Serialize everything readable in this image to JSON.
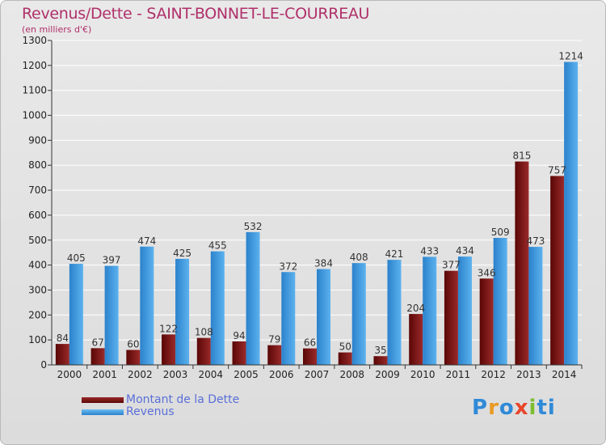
{
  "chart_data": {
    "type": "bar",
    "title": "Revenus/Dette - SAINT-BONNET-LE-COURREAU",
    "subtitle": "(en milliers d'€)",
    "categories": [
      "2000",
      "2001",
      "2002",
      "2003",
      "2004",
      "2005",
      "2006",
      "2007",
      "2008",
      "2009",
      "2010",
      "2011",
      "2012",
      "2013",
      "2014"
    ],
    "series": [
      {
        "name": "Montant de la Dette",
        "color": "#7a1212",
        "values": [
          84,
          67,
          60,
          122,
          108,
          94,
          79,
          66,
          50,
          35,
          204,
          377,
          346,
          815,
          757
        ]
      },
      {
        "name": "Revenus",
        "color": "#3b97e0",
        "values": [
          405,
          397,
          474,
          425,
          455,
          532,
          372,
          384,
          408,
          421,
          433,
          434,
          509,
          473,
          1214
        ]
      }
    ],
    "yticks": [
      0,
      100,
      200,
      300,
      400,
      500,
      600,
      700,
      800,
      900,
      1000,
      1100,
      1200,
      1300
    ],
    "ylim": [
      0,
      1300
    ],
    "legend_position": "bottom-left",
    "xlabel": "",
    "ylabel": ""
  },
  "logo": {
    "letters": [
      "P",
      "r",
      "o",
      "x",
      "i",
      "t",
      "i"
    ],
    "colors": [
      "#2f8ad8",
      "#e89a22",
      "#2f8ad8",
      "#e8452a",
      "#7cbd2f",
      "#2f8ad8",
      "#2f8ad8"
    ]
  }
}
